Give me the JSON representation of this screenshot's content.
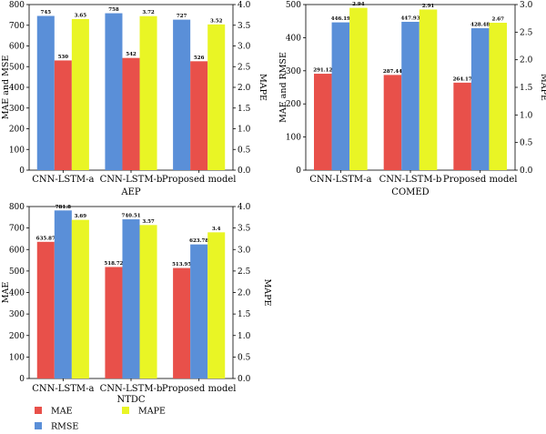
{
  "colors": {
    "mae": "#E8504A",
    "rmse": "#5A8FD8",
    "mape": "#E9F525"
  },
  "legend": [
    {
      "key": "mae",
      "label": "MAE"
    },
    {
      "key": "rmse",
      "label": "RMSE"
    },
    {
      "key": "mape",
      "label": "MAPE"
    }
  ],
  "chart_data": [
    {
      "type": "bar",
      "title": "AEP",
      "categories": [
        "CNN-LSTM-a",
        "CNN-LSTM-b",
        "Proposed model"
      ],
      "ylabel_left": "MAE and MSE",
      "ylabel_right": "MAPE",
      "ylim_left": [
        0,
        800
      ],
      "ylim_right": [
        0,
        4.0
      ],
      "left_ticks": [
        0,
        100,
        200,
        300,
        400,
        500,
        600,
        700,
        800
      ],
      "right_ticks": [
        "0.0",
        "0.5",
        "1.0",
        "1.5",
        "2.0",
        "2.5",
        "3.0",
        "3.5",
        "4.0"
      ],
      "series": [
        {
          "key": "rmse",
          "axis": "left",
          "values": [
            745,
            758,
            727
          ],
          "labels": [
            "745",
            "758",
            "727"
          ]
        },
        {
          "key": "mae",
          "axis": "left",
          "values": [
            530,
            542,
            526
          ],
          "labels": [
            "530",
            "542",
            "526"
          ]
        },
        {
          "key": "mape",
          "axis": "right",
          "values": [
            3.65,
            3.72,
            3.52
          ],
          "labels": [
            "3.65",
            "3.72",
            "3.52"
          ]
        }
      ]
    },
    {
      "type": "bar",
      "title": "COMED",
      "categories": [
        "CNN-LSTM-a",
        "CNN-LSTM-b",
        "Proposed model"
      ],
      "ylabel_left": "MAE and RMSE",
      "ylabel_right": "MAPE",
      "ylim_left": [
        0,
        500
      ],
      "ylim_right": [
        0,
        3.0
      ],
      "left_ticks": [
        0,
        100,
        200,
        300,
        400,
        500
      ],
      "right_ticks": [
        "0.0",
        "0.5",
        "1.0",
        "1.5",
        "2.0",
        "2.5",
        "3.0"
      ],
      "series": [
        {
          "key": "mae",
          "axis": "left",
          "values": [
            291.12,
            287.44,
            264.17
          ],
          "labels": [
            "291.12",
            "287.44",
            "264.17"
          ]
        },
        {
          "key": "rmse",
          "axis": "left",
          "values": [
            446.19,
            447.93,
            428.48
          ],
          "labels": [
            "446.19",
            "447.93",
            "428.48"
          ]
        },
        {
          "key": "mape",
          "axis": "right",
          "values": [
            2.94,
            2.91,
            2.67
          ],
          "labels": [
            "2.94",
            "2.91",
            "2.67"
          ]
        }
      ]
    },
    {
      "type": "bar",
      "title": "NTDC",
      "categories": [
        "CNN-LSTM-a",
        "CNN-LSTM-b",
        "Proposed model"
      ],
      "ylabel_left": "MAE",
      "ylabel_right": "MAPE",
      "ylim_left": [
        0,
        800
      ],
      "ylim_right": [
        0,
        4.0
      ],
      "left_ticks": [
        0,
        100,
        200,
        300,
        400,
        500,
        600,
        700,
        800
      ],
      "right_ticks": [
        "0.0",
        "0.5",
        "1.0",
        "1.5",
        "2.0",
        "2.5",
        "3.0",
        "3.5",
        "4.0"
      ],
      "series": [
        {
          "key": "mae",
          "axis": "left",
          "values": [
            635.87,
            518.72,
            513.95
          ],
          "labels": [
            "635.87",
            "518.72",
            "513.95"
          ]
        },
        {
          "key": "rmse",
          "axis": "left",
          "values": [
            781.8,
            740.51,
            623.78
          ],
          "labels": [
            "781.8",
            "740.51",
            "623.78"
          ]
        },
        {
          "key": "mape",
          "axis": "right",
          "values": [
            3.69,
            3.57,
            3.4
          ],
          "labels": [
            "3.69",
            "3.57",
            "3.4"
          ]
        }
      ]
    }
  ]
}
